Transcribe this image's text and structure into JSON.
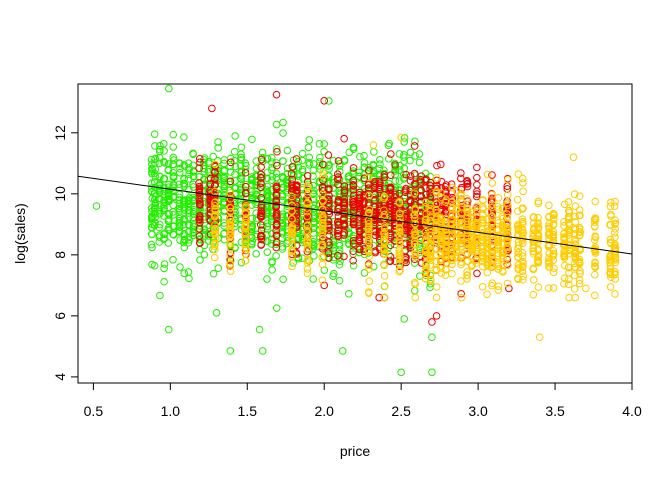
{
  "chart_data": {
    "type": "scatter",
    "title": "",
    "xlabel": "price",
    "ylabel": "log(sales)",
    "xlim": [
      0.4,
      4.0
    ],
    "ylim": [
      3.8,
      13.6
    ],
    "xticks": [
      "0.5",
      "1.0",
      "1.5",
      "2.0",
      "2.5",
      "3.0",
      "3.5",
      "4.0"
    ],
    "yticks": [
      "4",
      "6",
      "8",
      "10",
      "12"
    ],
    "grid": false,
    "legend": "none",
    "series": [
      {
        "color": "#22ee00",
        "price_columns": [
          0.88,
          0.9,
          0.93,
          0.96,
          0.99,
          1.02,
          1.06,
          1.09,
          1.12,
          1.15,
          1.19,
          1.22,
          1.25,
          1.28,
          1.31,
          1.35,
          1.39,
          1.42,
          1.46,
          1.49,
          1.53,
          1.56,
          1.6,
          1.63,
          1.66,
          1.69,
          1.73,
          1.76,
          1.8,
          1.83,
          1.86,
          1.9,
          1.93,
          1.97,
          2.0,
          2.03,
          2.06,
          2.1,
          2.13,
          2.16,
          2.19,
          2.23,
          2.26,
          2.29,
          2.32,
          2.36,
          2.39,
          2.42,
          2.46,
          2.49,
          2.52,
          2.56,
          2.59,
          2.62,
          2.66,
          2.69
        ],
        "center": 9.5,
        "spread": 0.9,
        "min": 4.2,
        "max": 13.4,
        "points": [
          {
            "x": 0.52,
            "y": 9.6
          },
          {
            "x": 0.99,
            "y": 13.45
          },
          {
            "x": 0.99,
            "y": 5.55
          },
          {
            "x": 1.39,
            "y": 4.85
          },
          {
            "x": 1.6,
            "y": 4.85
          },
          {
            "x": 2.12,
            "y": 4.85
          },
          {
            "x": 2.5,
            "y": 4.15
          },
          {
            "x": 2.7,
            "y": 4.15
          },
          {
            "x": 2.7,
            "y": 5.3
          },
          {
            "x": 1.3,
            "y": 6.1
          },
          {
            "x": 2.52,
            "y": 5.9
          },
          {
            "x": 1.58,
            "y": 5.55
          }
        ]
      },
      {
        "color": "#ee0000",
        "price_columns": [
          1.19,
          1.26,
          1.29,
          1.39,
          1.49,
          1.59,
          1.69,
          1.79,
          1.82,
          1.89,
          1.99,
          2.03,
          2.09,
          2.13,
          2.19,
          2.23,
          2.26,
          2.29,
          2.33,
          2.36,
          2.39,
          2.43,
          2.46,
          2.49,
          2.53,
          2.56,
          2.59,
          2.63,
          2.66,
          2.69,
          2.73,
          2.76,
          2.79,
          2.83,
          2.89,
          2.93,
          2.99,
          3.09,
          3.19
        ],
        "center": 9.3,
        "spread": 0.75,
        "min": 6.6,
        "max": 12.9,
        "points": [
          {
            "x": 1.69,
            "y": 13.25
          },
          {
            "x": 2.0,
            "y": 13.05
          },
          {
            "x": 1.27,
            "y": 12.8
          },
          {
            "x": 2.0,
            "y": 7.0
          },
          {
            "x": 2.7,
            "y": 5.8
          },
          {
            "x": 2.73,
            "y": 6.0
          },
          {
            "x": 3.2,
            "y": 6.9
          }
        ]
      },
      {
        "color": "#ffcc00",
        "price_columns": [
          1.29,
          1.39,
          1.49,
          1.79,
          1.89,
          1.99,
          2.29,
          2.39,
          2.49,
          2.59,
          2.66,
          2.69,
          2.73,
          2.76,
          2.79,
          2.83,
          2.86,
          2.89,
          2.93,
          2.96,
          2.99,
          3.03,
          3.06,
          3.09,
          3.13,
          3.16,
          3.19,
          3.26,
          3.29,
          3.36,
          3.39,
          3.46,
          3.49,
          3.56,
          3.59,
          3.63,
          3.66,
          3.76,
          3.86,
          3.89
        ],
        "center": 8.7,
        "spread": 0.7,
        "min": 6.6,
        "max": 11.9,
        "points": [
          {
            "x": 3.4,
            "y": 5.3
          },
          {
            "x": 3.62,
            "y": 11.2
          },
          {
            "x": 2.5,
            "y": 11.85
          },
          {
            "x": 2.32,
            "y": 11.6
          },
          {
            "x": 3.7,
            "y": 6.9
          },
          {
            "x": 3.29,
            "y": 10.5
          }
        ]
      }
    ],
    "trend_line": {
      "intercept": 10.86,
      "slope": -0.708,
      "color": "#000000"
    }
  }
}
